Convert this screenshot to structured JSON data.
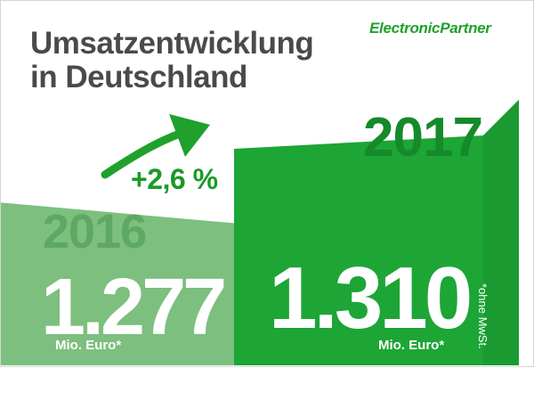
{
  "header": {
    "title_line1": "Umsatzentwicklung",
    "title_line2": "in Deutschland",
    "brand": "ElectronicPartner",
    "change": "+2,6 %",
    "footnote": "*ohne MwSt."
  },
  "colors": {
    "accent": "#1fa12b",
    "bar_2016": "#7dbf7e",
    "bar_2017": "#1da536",
    "year_2016": "#5fa863",
    "year_2017": "#158a2a",
    "title": "#4a4a4a"
  },
  "chart_data": {
    "type": "bar",
    "categories": [
      "2016",
      "2017"
    ],
    "values": [
      1277,
      1310
    ],
    "value_labels": [
      "1.277",
      "1.310"
    ],
    "unit_label": "Mio. Euro*",
    "ylabel": "",
    "xlabel": ""
  }
}
